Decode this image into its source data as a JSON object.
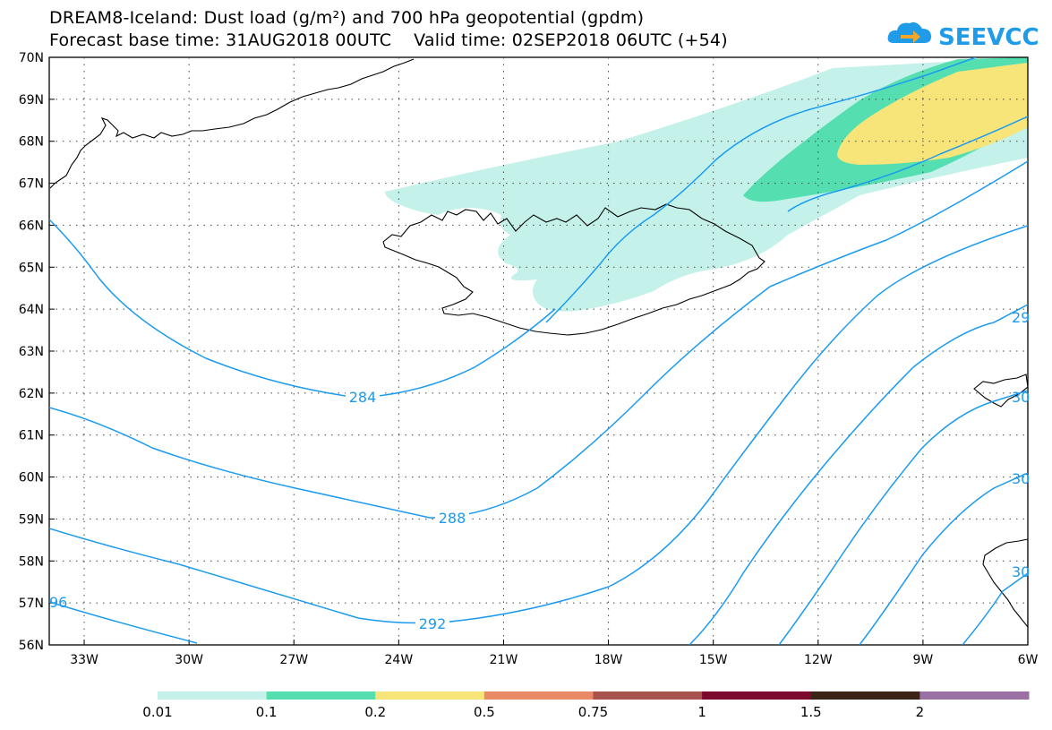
{
  "title": {
    "line1": "DREAM8-Iceland: Dust load (g/m²) and 700 hPa geopotential (gpdm)",
    "line2": "Forecast base time: 31AUG2018 00UTC    Valid time: 02SEP2018 06UTC (+54)"
  },
  "logo": {
    "text": "SEEVCCC",
    "icon": "cloud-arrow-icon"
  },
  "map": {
    "region": "Iceland",
    "lon_range": [
      -34,
      -6
    ],
    "lat_range": [
      56,
      70
    ],
    "lat_labels": [
      "70N",
      "69N",
      "68N",
      "67N",
      "66N",
      "65N",
      "64N",
      "63N",
      "62N",
      "61N",
      "60N",
      "59N",
      "58N",
      "57N",
      "56N"
    ],
    "lon_labels": [
      "33W",
      "30W",
      "27W",
      "24W",
      "21W",
      "18W",
      "15W",
      "12W",
      "9W",
      "6W"
    ],
    "gridlines": "dotted",
    "contour_color": "#1a9bf0",
    "contour_labels": [
      "284",
      "288",
      "292",
      "96",
      "29",
      "30",
      "30",
      "30"
    ]
  },
  "colorbar": {
    "colors": [
      "#c4f2ea",
      "#55dfb1",
      "#f7e57a",
      "#e98a66",
      "#a7524c",
      "#7c0a2e",
      "#3b2416",
      "#9a70a5"
    ],
    "labels": [
      "0.01",
      "0.1",
      "0.2",
      "0.5",
      "0.75",
      "1",
      "1.5",
      "2"
    ]
  }
}
